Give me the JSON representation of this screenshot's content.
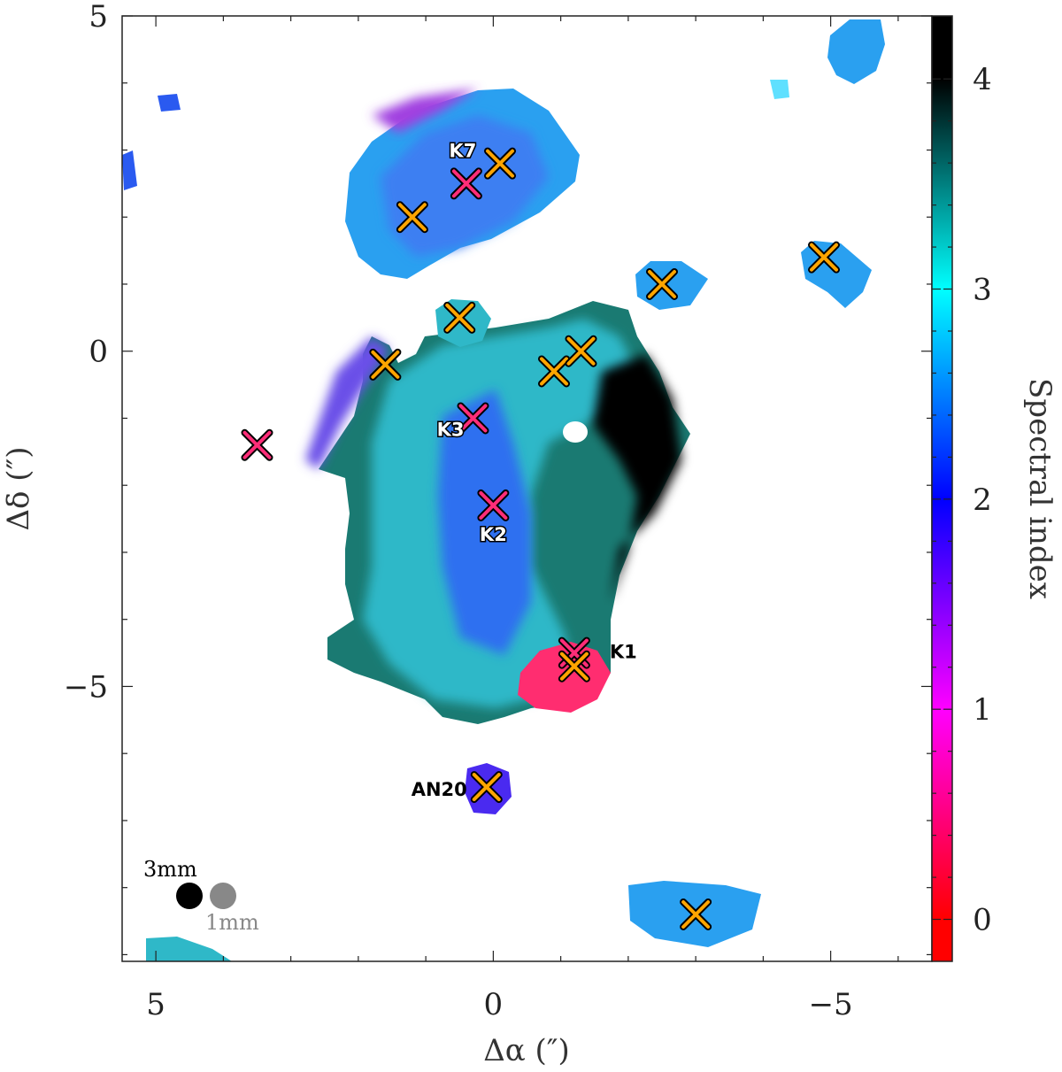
{
  "chart_data": {
    "type": "heatmap",
    "xlabel": "Δα  (″)",
    "ylabel": "Δδ  (″)",
    "colorbar_label": "Spectral index",
    "xlim": [
      5.5,
      -6.5
    ],
    "ylim": [
      -9.1,
      5.0
    ],
    "x_ticks": [
      5,
      0,
      -5
    ],
    "x_tick_labels": [
      "5",
      "0",
      "−5"
    ],
    "y_ticks": [
      5,
      0,
      -5
    ],
    "y_tick_labels": [
      "5",
      "0",
      "−5"
    ],
    "colorbar_range": [
      -0.2,
      4.3
    ],
    "colorbar_ticks": [
      0,
      1,
      2,
      3,
      4
    ],
    "colorbar_tick_labels": [
      "0",
      "1",
      "2",
      "3",
      "4"
    ],
    "colormap": [
      "#ff0000",
      "#ff00ff",
      "#0000ff",
      "#00ffff",
      "#000000"
    ],
    "sources": [
      {
        "label": "K7",
        "x": 0.4,
        "y": 2.5,
        "marker": "magenta"
      },
      {
        "label": "",
        "x": -0.1,
        "y": 2.8,
        "marker": "orange"
      },
      {
        "label": "",
        "x": 1.2,
        "y": 2.0,
        "marker": "orange"
      },
      {
        "label": "",
        "x": 0.5,
        "y": 0.5,
        "marker": "orange"
      },
      {
        "label": "",
        "x": 1.6,
        "y": -0.2,
        "marker": "orange"
      },
      {
        "label": "K3",
        "x": 0.3,
        "y": -1.0,
        "marker": "magenta"
      },
      {
        "label": "",
        "x": 3.5,
        "y": -1.4,
        "marker": "magenta"
      },
      {
        "label": "",
        "x": -0.9,
        "y": -0.3,
        "marker": "orange"
      },
      {
        "label": "",
        "x": -1.3,
        "y": 0.0,
        "marker": "orange"
      },
      {
        "label": "",
        "x": -2.5,
        "y": 1.0,
        "marker": "orange"
      },
      {
        "label": "",
        "x": -4.9,
        "y": 1.4,
        "marker": "orange"
      },
      {
        "label": "K2",
        "x": 0.0,
        "y": -2.3,
        "marker": "magenta"
      },
      {
        "label": "K1",
        "x": -1.2,
        "y": -4.5,
        "marker": "magenta"
      },
      {
        "label": "",
        "x": -1.2,
        "y": -4.7,
        "marker": "orange"
      },
      {
        "label": "AN20",
        "x": 0.1,
        "y": -6.5,
        "marker": "orange"
      },
      {
        "label": "",
        "x": -3.0,
        "y": -8.4,
        "marker": "orange"
      }
    ],
    "beams": [
      {
        "label": "3mm",
        "color": "#000000"
      },
      {
        "label": "1mm",
        "color": "#888888"
      }
    ],
    "colors": {
      "marker_orange": "#ffa500",
      "marker_magenta": "#ff2d78",
      "outline": "#000000"
    }
  }
}
